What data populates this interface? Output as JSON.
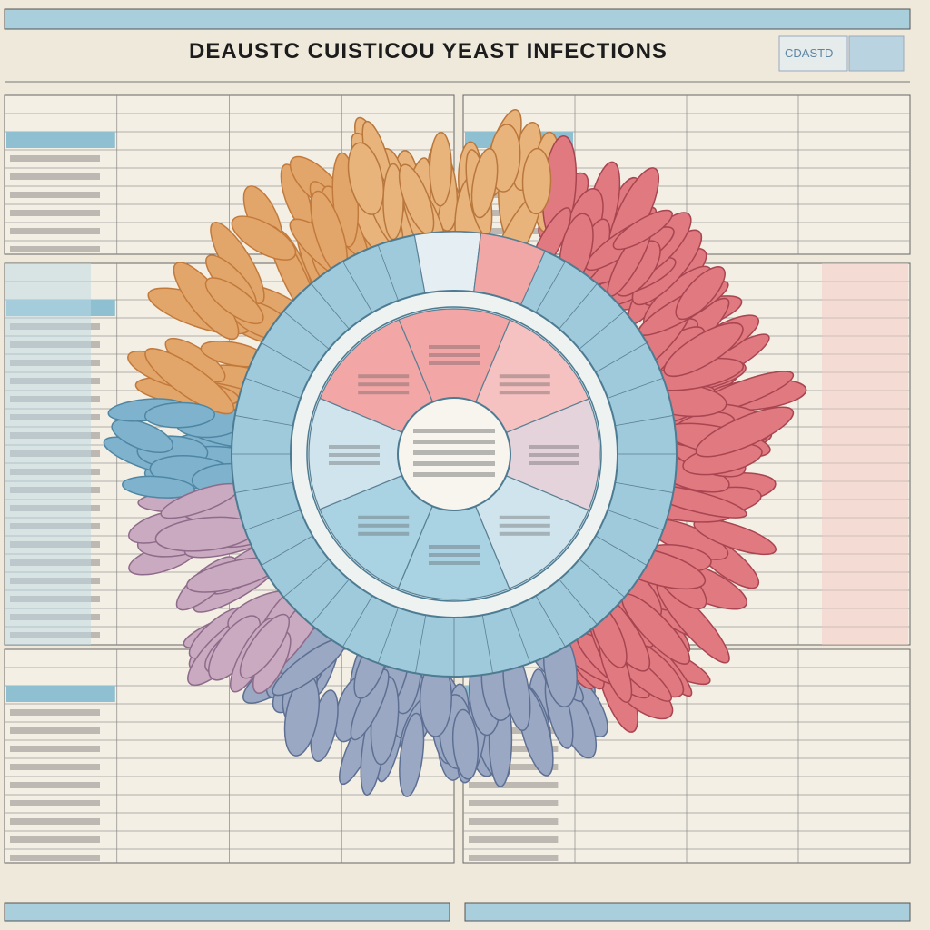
{
  "header": {
    "title": "DEAUSTC  CUISTICOU YEAST INFECTIONS",
    "badge": "CDASTD"
  }
}
